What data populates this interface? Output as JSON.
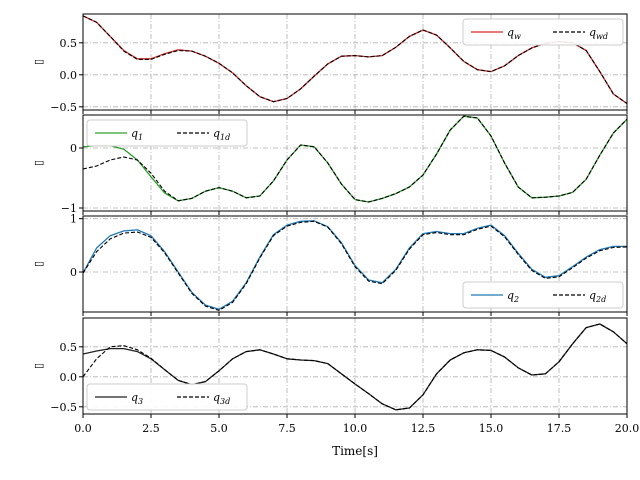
{
  "chart_data": {
    "type": "line",
    "xlabel": "Time[s]",
    "xlim": [
      0,
      20
    ],
    "xticks": [
      "0.0",
      "2.5",
      "5.0",
      "7.5",
      "10.0",
      "12.5",
      "15.0",
      "17.5",
      "20.0"
    ],
    "grid": true,
    "colors": {
      "q_w": "#d62728",
      "q_1": "#2ca02c",
      "q_2": "#1f77b4",
      "q_3": "#222222",
      "desired": "#000000"
    },
    "subplots": [
      {
        "id": "qw",
        "ylabel": "▯",
        "ylim": [
          -0.55,
          0.95
        ],
        "yticks": [
          {
            "v": 0.5,
            "label": "0.5"
          },
          {
            "v": 0.0,
            "label": "0.0"
          },
          {
            "v": -0.5,
            "label": "−0.5"
          }
        ],
        "legend_position": "top-right",
        "series": [
          {
            "name": "q_w",
            "base": "q",
            "sub": "w",
            "style": "solid",
            "color": "#d62728",
            "x": [
              0,
              0.5,
              1,
              1.5,
              2,
              2.5,
              3,
              3.5,
              4,
              4.5,
              5,
              5.5,
              6,
              6.5,
              7,
              7.5,
              8,
              8.5,
              9,
              9.5,
              10,
              10.5,
              11,
              11.5,
              12,
              12.5,
              13,
              13.5,
              14,
              14.5,
              15,
              15.5,
              16,
              16.5,
              17,
              17.5,
              18,
              18.5,
              19,
              19.5,
              20
            ],
            "y": [
              0.92,
              0.82,
              0.6,
              0.38,
              0.25,
              0.25,
              0.33,
              0.39,
              0.37,
              0.29,
              0.18,
              0.03,
              -0.17,
              -0.34,
              -0.42,
              -0.37,
              -0.22,
              -0.02,
              0.17,
              0.29,
              0.3,
              0.28,
              0.3,
              0.43,
              0.6,
              0.7,
              0.62,
              0.42,
              0.21,
              0.08,
              0.05,
              0.14,
              0.3,
              0.42,
              0.49,
              0.52,
              0.5,
              0.38,
              0.05,
              -0.3,
              -0.45
            ]
          },
          {
            "name": "q_wd",
            "base": "q",
            "sub": "wd",
            "style": "dashed",
            "color": "#000000",
            "x": [
              0,
              0.5,
              1,
              1.5,
              2,
              2.5,
              3,
              3.5,
              4,
              4.5,
              5,
              5.5,
              6,
              6.5,
              7,
              7.5,
              8,
              8.5,
              9,
              9.5,
              10,
              10.5,
              11,
              11.5,
              12,
              12.5,
              13,
              13.5,
              14,
              14.5,
              15,
              15.5,
              16,
              16.5,
              17,
              17.5,
              18,
              18.5,
              19,
              19.5,
              20
            ],
            "y": [
              0.92,
              0.82,
              0.6,
              0.37,
              0.24,
              0.24,
              0.32,
              0.38,
              0.37,
              0.29,
              0.18,
              0.03,
              -0.17,
              -0.34,
              -0.42,
              -0.37,
              -0.22,
              -0.02,
              0.17,
              0.29,
              0.3,
              0.28,
              0.3,
              0.43,
              0.6,
              0.7,
              0.62,
              0.42,
              0.21,
              0.08,
              0.05,
              0.14,
              0.3,
              0.42,
              0.49,
              0.52,
              0.5,
              0.38,
              0.05,
              -0.3,
              -0.45
            ]
          }
        ]
      },
      {
        "id": "q1",
        "ylabel": "▯",
        "ylim": [
          -1.05,
          0.55
        ],
        "yticks": [
          {
            "v": 0,
            "label": "0"
          },
          {
            "v": -1,
            "label": "−1"
          }
        ],
        "legend_position": "top-left",
        "series": [
          {
            "name": "q_1",
            "base": "q",
            "sub": "1",
            "style": "solid",
            "color": "#2ca02c",
            "x": [
              0,
              0.5,
              1,
              1.5,
              2,
              2.5,
              3,
              3.5,
              4,
              4.5,
              5,
              5.5,
              6,
              6.5,
              7,
              7.5,
              8,
              8.5,
              9,
              9.5,
              10,
              10.5,
              11,
              11.5,
              12,
              12.5,
              13,
              13.5,
              14,
              14.5,
              15,
              15.5,
              16,
              16.5,
              17,
              17.5,
              18,
              18.5,
              19,
              19.5,
              20
            ],
            "y": [
              0.02,
              0.04,
              0.04,
              -0.02,
              -0.2,
              -0.48,
              -0.75,
              -0.88,
              -0.84,
              -0.72,
              -0.66,
              -0.72,
              -0.83,
              -0.8,
              -0.55,
              -0.2,
              0.05,
              0.02,
              -0.25,
              -0.6,
              -0.86,
              -0.9,
              -0.84,
              -0.76,
              -0.65,
              -0.45,
              -0.1,
              0.3,
              0.53,
              0.5,
              0.2,
              -0.25,
              -0.65,
              -0.83,
              -0.82,
              -0.8,
              -0.74,
              -0.52,
              -0.12,
              0.25,
              0.48
            ]
          },
          {
            "name": "q_1d",
            "base": "q",
            "sub": "1d",
            "style": "dashed",
            "color": "#000000",
            "x": [
              0,
              0.5,
              1,
              1.5,
              2,
              2.5,
              3,
              3.5,
              4,
              4.5,
              5,
              5.5,
              6,
              6.5,
              7,
              7.5,
              8,
              8.5,
              9,
              9.5,
              10,
              10.5,
              11,
              11.5,
              12,
              12.5,
              13,
              13.5,
              14,
              14.5,
              15,
              15.5,
              16,
              16.5,
              17,
              17.5,
              18,
              18.5,
              19,
              19.5,
              20
            ],
            "y": [
              -0.35,
              -0.3,
              -0.2,
              -0.15,
              -0.2,
              -0.42,
              -0.72,
              -0.88,
              -0.84,
              -0.72,
              -0.66,
              -0.72,
              -0.83,
              -0.8,
              -0.55,
              -0.2,
              0.05,
              0.02,
              -0.25,
              -0.6,
              -0.86,
              -0.9,
              -0.84,
              -0.76,
              -0.65,
              -0.45,
              -0.1,
              0.3,
              0.53,
              0.5,
              0.2,
              -0.25,
              -0.65,
              -0.83,
              -0.82,
              -0.8,
              -0.74,
              -0.52,
              -0.12,
              0.25,
              0.48
            ]
          }
        ]
      },
      {
        "id": "q2",
        "ylabel": "▯",
        "ylim": [
          -0.75,
          1.05
        ],
        "yticks": [
          {
            "v": 1,
            "label": "1"
          },
          {
            "v": 0,
            "label": "0"
          }
        ],
        "legend_position": "bottom-right",
        "series": [
          {
            "name": "q_2",
            "base": "q",
            "sub": "2",
            "style": "solid",
            "color": "#1f77b4",
            "x": [
              0,
              0.5,
              1,
              1.5,
              2,
              2.5,
              3,
              3.5,
              4,
              4.5,
              5,
              5.5,
              6,
              6.5,
              7,
              7.5,
              8,
              8.5,
              9,
              9.5,
              10,
              10.5,
              11,
              11.5,
              12,
              12.5,
              13,
              13.5,
              14,
              14.5,
              15,
              15.5,
              16,
              16.5,
              17,
              17.5,
              18,
              18.5,
              19,
              19.5,
              20
            ],
            "y": [
              -0.02,
              0.45,
              0.68,
              0.77,
              0.79,
              0.68,
              0.38,
              0.0,
              -0.38,
              -0.62,
              -0.7,
              -0.55,
              -0.2,
              0.28,
              0.7,
              0.88,
              0.95,
              0.96,
              0.85,
              0.55,
              0.12,
              -0.15,
              -0.2,
              0.05,
              0.45,
              0.72,
              0.76,
              0.72,
              0.72,
              0.82,
              0.88,
              0.68,
              0.35,
              0.05,
              -0.1,
              -0.07,
              0.1,
              0.28,
              0.42,
              0.48,
              0.48
            ]
          },
          {
            "name": "q_2d",
            "base": "q",
            "sub": "2d",
            "style": "dashed",
            "color": "#000000",
            "x": [
              0,
              0.5,
              1,
              1.5,
              2,
              2.5,
              3,
              3.5,
              4,
              4.5,
              5,
              5.5,
              6,
              6.5,
              7,
              7.5,
              8,
              8.5,
              9,
              9.5,
              10,
              10.5,
              11,
              11.5,
              12,
              12.5,
              13,
              13.5,
              14,
              14.5,
              15,
              15.5,
              16,
              16.5,
              17,
              17.5,
              18,
              18.5,
              19,
              19.5,
              20
            ],
            "y": [
              -0.02,
              0.38,
              0.62,
              0.73,
              0.75,
              0.65,
              0.36,
              -0.02,
              -0.4,
              -0.64,
              -0.72,
              -0.57,
              -0.22,
              0.26,
              0.68,
              0.86,
              0.93,
              0.95,
              0.84,
              0.53,
              0.1,
              -0.17,
              -0.22,
              0.03,
              0.43,
              0.7,
              0.74,
              0.7,
              0.7,
              0.8,
              0.86,
              0.66,
              0.33,
              0.03,
              -0.12,
              -0.09,
              0.08,
              0.26,
              0.4,
              0.46,
              0.47
            ]
          }
        ]
      },
      {
        "id": "q3",
        "ylabel": "▯",
        "ylim": [
          -0.62,
          0.98
        ],
        "yticks": [
          {
            "v": 0.5,
            "label": "0.5"
          },
          {
            "v": 0.0,
            "label": "0.0"
          },
          {
            "v": -0.5,
            "label": "−0.5"
          }
        ],
        "legend_position": "bottom-left",
        "series": [
          {
            "name": "q_3",
            "base": "q",
            "sub": "3",
            "style": "solid",
            "color": "#222222",
            "x": [
              0,
              0.5,
              1,
              1.5,
              2,
              2.5,
              3,
              3.5,
              4,
              4.5,
              5,
              5.5,
              6,
              6.5,
              7,
              7.5,
              8,
              8.5,
              9,
              9.5,
              10,
              10.5,
              11,
              11.5,
              12,
              12.5,
              13,
              13.5,
              14,
              14.5,
              15,
              15.5,
              16,
              16.5,
              17,
              17.5,
              18,
              18.5,
              19,
              19.5,
              20
            ],
            "y": [
              0.38,
              0.43,
              0.47,
              0.47,
              0.42,
              0.3,
              0.12,
              -0.06,
              -0.13,
              -0.08,
              0.1,
              0.3,
              0.42,
              0.45,
              0.38,
              0.3,
              0.28,
              0.27,
              0.22,
              0.05,
              -0.12,
              -0.28,
              -0.45,
              -0.55,
              -0.52,
              -0.3,
              0.05,
              0.28,
              0.4,
              0.45,
              0.44,
              0.33,
              0.15,
              0.03,
              0.05,
              0.25,
              0.55,
              0.82,
              0.88,
              0.75,
              0.55
            ]
          },
          {
            "name": "q_3d",
            "base": "q",
            "sub": "3d",
            "style": "dashed",
            "color": "#000000",
            "x": [
              0,
              0.5,
              1,
              1.5,
              2,
              2.5,
              3,
              3.5,
              4,
              4.5,
              5,
              5.5,
              6,
              6.5,
              7,
              7.5,
              8,
              8.5,
              9,
              9.5,
              10,
              10.5,
              11,
              11.5,
              12,
              12.5,
              13,
              13.5,
              14,
              14.5,
              15,
              15.5,
              16,
              16.5,
              17,
              17.5,
              18,
              18.5,
              19,
              19.5,
              20
            ],
            "y": [
              0.0,
              0.3,
              0.5,
              0.52,
              0.45,
              0.31,
              0.12,
              -0.06,
              -0.13,
              -0.08,
              0.1,
              0.3,
              0.42,
              0.45,
              0.38,
              0.3,
              0.28,
              0.27,
              0.22,
              0.05,
              -0.12,
              -0.28,
              -0.45,
              -0.55,
              -0.52,
              -0.3,
              0.05,
              0.28,
              0.4,
              0.45,
              0.44,
              0.33,
              0.15,
              0.03,
              0.05,
              0.25,
              0.55,
              0.82,
              0.88,
              0.75,
              0.55
            ]
          }
        ]
      }
    ]
  }
}
